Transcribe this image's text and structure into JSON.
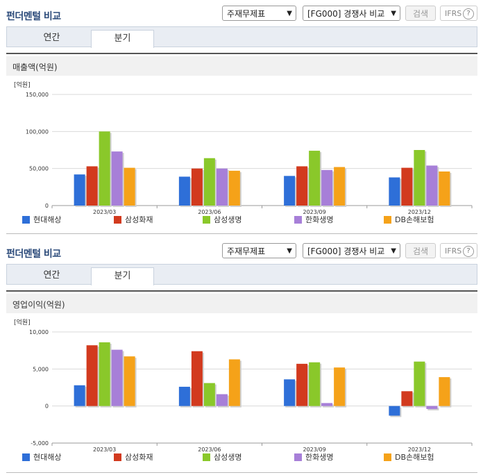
{
  "panels": [
    {
      "title": "펀더멘털 비교",
      "select1": "주재무제표",
      "select2": "[FG000] 경쟁사 비교",
      "search": "검색",
      "ifrs": "IFRS",
      "help": "?",
      "tabs": [
        "연간",
        "분기"
      ],
      "active_tab": "분기",
      "metric": "매출액(억원)"
    },
    {
      "title": "펀더멘털 비교",
      "select1": "주재무제표",
      "select2": "[FG000] 경쟁사 비교",
      "search": "검색",
      "ifrs": "IFRS",
      "help": "?",
      "tabs": [
        "연간",
        "분기"
      ],
      "active_tab": "분기",
      "metric": "영업이익(억원)"
    }
  ],
  "colors": {
    "series": [
      "#2e6fd8",
      "#d23a1e",
      "#8ac82a",
      "#a77fd8",
      "#f5a219"
    ],
    "title": "#2b4a7a"
  },
  "chart_data": [
    {
      "type": "bar",
      "unit": "[억원]",
      "categories": [
        "2023/03",
        "2023/06",
        "2023/09",
        "2023/12"
      ],
      "ylim": [
        0,
        150000
      ],
      "yticks": [
        0,
        50000,
        100000,
        150000
      ],
      "ytick_labels": [
        "0",
        "50,000",
        "100,000",
        "150,000"
      ],
      "grid": true,
      "legend_position": "bottom",
      "series": [
        {
          "name": "현대해상",
          "values": [
            42000,
            39000,
            40000,
            38000
          ]
        },
        {
          "name": "삼성화재",
          "values": [
            53000,
            50000,
            53000,
            51000
          ]
        },
        {
          "name": "삼성생명",
          "values": [
            100000,
            64000,
            74000,
            75000
          ]
        },
        {
          "name": "한화생명",
          "values": [
            73000,
            50000,
            48000,
            54000
          ]
        },
        {
          "name": "DB손해보험",
          "values": [
            51000,
            47000,
            52000,
            46000
          ]
        }
      ]
    },
    {
      "type": "bar",
      "unit": "[억원]",
      "categories": [
        "2023/03",
        "2023/06",
        "2023/09",
        "2023/12"
      ],
      "ylim": [
        -5000,
        10000
      ],
      "yticks": [
        -5000,
        0,
        5000,
        10000
      ],
      "ytick_labels": [
        "-5,000",
        "0",
        "5,000",
        "10,000"
      ],
      "grid": true,
      "legend_position": "bottom",
      "series": [
        {
          "name": "현대해상",
          "values": [
            2800,
            2600,
            3600,
            -1300
          ]
        },
        {
          "name": "삼성화재",
          "values": [
            8200,
            7400,
            5700,
            2000
          ]
        },
        {
          "name": "삼성생명",
          "values": [
            8600,
            3100,
            5900,
            6000
          ]
        },
        {
          "name": "한화생명",
          "values": [
            7600,
            1600,
            400,
            -400
          ]
        },
        {
          "name": "DB손해보험",
          "values": [
            6700,
            6300,
            5200,
            3900
          ]
        }
      ]
    }
  ]
}
